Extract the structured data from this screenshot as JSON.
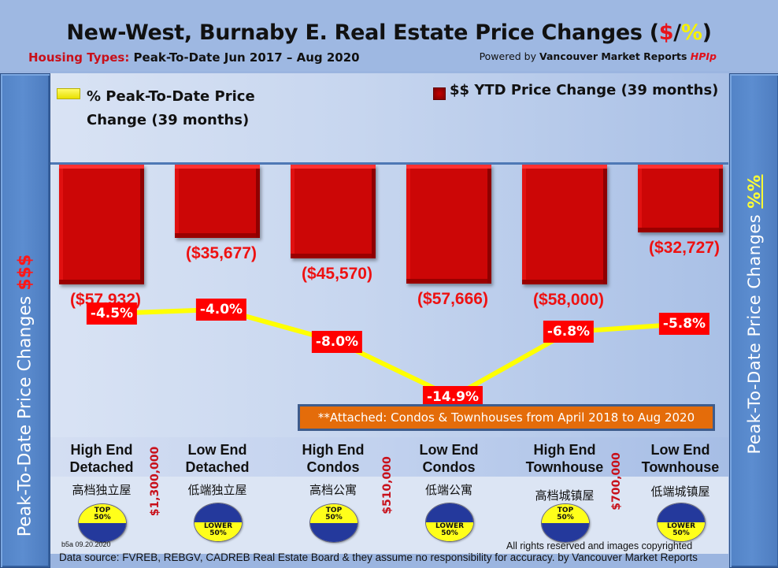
{
  "header": {
    "title_main": "New-West, Burnaby E. Real Estate Price Changes (",
    "title_dollar": "$",
    "title_slash": "/",
    "title_pct": "%",
    "title_close": ")",
    "subtitle_red": "Housing Types:",
    "subtitle_rest": " Peak-To-Date Jun 2017 – Aug 2020",
    "powered_prefix": "Powered by ",
    "powered_brand": "Vancouver Market Reports ",
    "powered_hpi": "HPIp"
  },
  "side_left": {
    "text": "Peak-To-Date Price Changes ",
    "accent": "$$$"
  },
  "side_right": {
    "text": "Peak-To-Date  Price  Changes ",
    "accent": "%%"
  },
  "colors": {
    "bar": "#cc0606",
    "line": "#ffff00",
    "label_bg": "#ff0000",
    "banner": "#e46c0a"
  },
  "chart_data": {
    "type": "bar+line",
    "title": "New-West, Burnaby E. Real Estate Price Changes ($/%)",
    "categories": [
      "High End Detached",
      "Low End Detached",
      "High End Condos",
      "Low End Condos",
      "High End Townhouse",
      "Low End Townhouse"
    ],
    "series": [
      {
        "name": "$$ YTD Price Change (39 months)",
        "type": "bar",
        "values": [
          -57932,
          -35677,
          -45570,
          -57666,
          -58000,
          -32727
        ],
        "labels": [
          "($57,932)",
          "($35,677)",
          "($45,570)",
          "($57,666)",
          "($58,000)",
          "($32,727)"
        ]
      },
      {
        "name": "% Peak-To-Date Price Change (39 months)",
        "type": "line",
        "values": [
          -4.5,
          -4.0,
          -8.0,
          -14.9,
          -6.8,
          -5.8
        ],
        "labels": [
          "-4.5%",
          "-4.0%",
          "-8.0%",
          "-14.9%",
          "-6.8%",
          "-5.8%"
        ]
      }
    ],
    "ylabel_left": "Peak-To-Date Price Changes $$$",
    "ylabel_right": "Peak-To-Date Price Changes %%",
    "legend": "top",
    "grid": false
  },
  "legend": {
    "line_label": "% Peak-To-Date Price Change (39 months)",
    "bar_label": "$$ YTD Price Change (39 months)"
  },
  "banner": "**Attached: Condos & Townhouses from April 2018 to Aug 2020",
  "categories": [
    {
      "line1": "High End",
      "line2": "Detached",
      "chinese": "高档独立屋",
      "badge": "top",
      "badge_l1": "TOP",
      "badge_l2": "50%"
    },
    {
      "line1": "Low End",
      "line2": "Detached",
      "chinese": "低端独立屋",
      "badge": "lower",
      "badge_l1": "LOWER",
      "badge_l2": "50%"
    },
    {
      "line1": "High End",
      "line2": "Condos",
      "chinese": "高档公寓",
      "badge": "top",
      "badge_l1": "TOP",
      "badge_l2": "50%"
    },
    {
      "line1": "Low End",
      "line2": "Condos",
      "chinese": "低端公寓",
      "badge": "lower",
      "badge_l1": "LOWER",
      "badge_l2": "50%"
    },
    {
      "line1": "High End",
      "line2": "Townhouse",
      "chinese": "高档城镇屋",
      "badge": "top",
      "badge_l1": "TOP",
      "badge_l2": "50%"
    },
    {
      "line1": "Low End",
      "line2": "Townhouse",
      "chinese": "低端城镇屋",
      "badge": "lower",
      "badge_l1": "LOWER",
      "badge_l2": "50%"
    }
  ],
  "thresholds": [
    "$1,300,000",
    "$510,000",
    "$700,000"
  ],
  "footer": {
    "version": "b5a 09.20.2020",
    "rights": "All rights reserved and  images copyrighted",
    "source": "Data source: FVREB, REBGV, CADREB Real Estate Board & they assume no responsibility for accuracy. by Vancouver Market Reports"
  }
}
